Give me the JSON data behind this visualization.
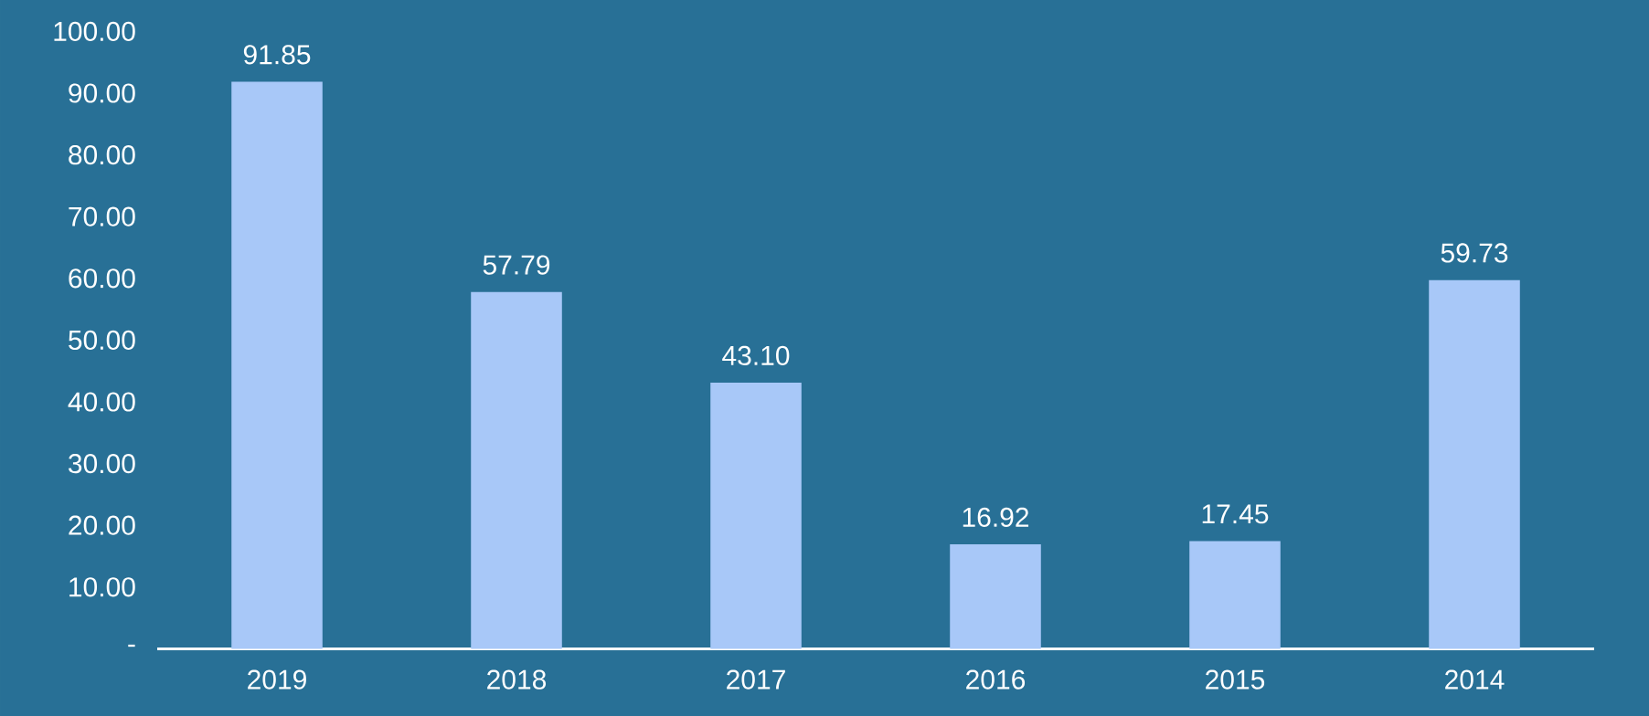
{
  "chart_data": {
    "type": "bar",
    "categories": [
      "2019",
      "2018",
      "2017",
      "2016",
      "2015",
      "2014"
    ],
    "values": [
      91.85,
      57.79,
      43.1,
      16.92,
      17.45,
      59.73
    ],
    "value_labels": [
      "91.85",
      "57.79",
      "43.10",
      "16.92",
      "17.45",
      "59.73"
    ],
    "color": "#a8c8f8",
    "ylim": [
      0,
      100
    ],
    "yticks": [
      {
        "value": 0,
        "label": "-"
      },
      {
        "value": 10,
        "label": "10.00"
      },
      {
        "value": 20,
        "label": "20.00"
      },
      {
        "value": 30,
        "label": "30.00"
      },
      {
        "value": 40,
        "label": "40.00"
      },
      {
        "value": 50,
        "label": "50.00"
      },
      {
        "value": 60,
        "label": "60.00"
      },
      {
        "value": 70,
        "label": "70.00"
      },
      {
        "value": 80,
        "label": "80.00"
      },
      {
        "value": 90,
        "label": "90.00"
      },
      {
        "value": 100,
        "label": "100.00"
      }
    ],
    "grid": false
  }
}
